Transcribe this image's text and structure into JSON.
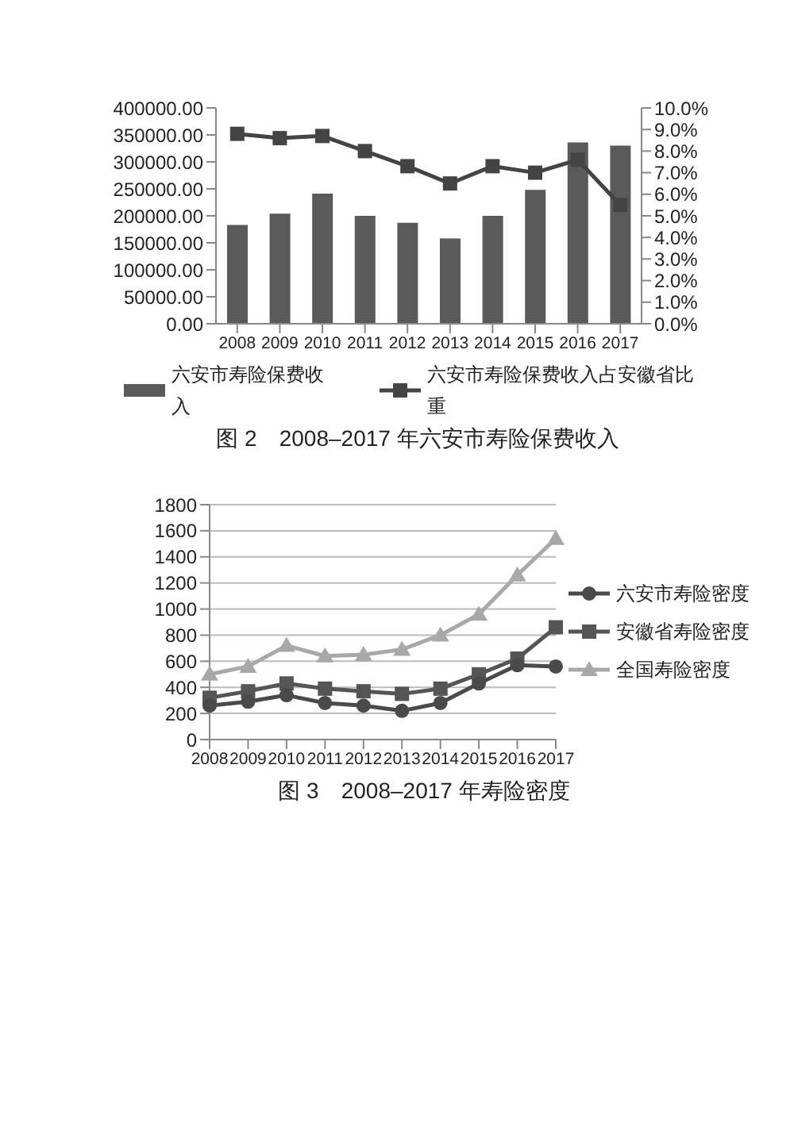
{
  "chart_data": [
    {
      "type": "bar",
      "title": "图 2　2008–2017 年六安市寿险保费收入",
      "categories": [
        "2008",
        "2009",
        "2010",
        "2011",
        "2012",
        "2013",
        "2014",
        "2015",
        "2016",
        "2017"
      ],
      "series": [
        {
          "name": "六安市寿险保费收入",
          "color": "#5a5a5a",
          "values": [
            183000,
            204000,
            241000,
            200000,
            187000,
            158000,
            200000,
            248000,
            336000,
            330000
          ]
        },
        {
          "name": "六安市寿险保费收入占安徽省比重",
          "type": "line",
          "axis": "y2",
          "marker": "square",
          "color": "#444444",
          "values": [
            8.8,
            8.6,
            8.7,
            8.0,
            7.3,
            6.5,
            7.3,
            7.0,
            7.6,
            5.5
          ]
        }
      ],
      "ylim": [
        0,
        400000
      ],
      "yticks": [
        {
          "value": 0,
          "label": "0.00"
        },
        {
          "value": 50000,
          "label": "50000.00"
        },
        {
          "value": 100000,
          "label": "100000.00"
        },
        {
          "value": 150000,
          "label": "150000.00"
        },
        {
          "value": 200000,
          "label": "200000.00"
        },
        {
          "value": 250000,
          "label": "250000.00"
        },
        {
          "value": 300000,
          "label": "300000.00"
        },
        {
          "value": 350000,
          "label": "350000.00"
        },
        {
          "value": 400000,
          "label": "400000.00"
        }
      ],
      "y2lim": [
        0,
        10
      ],
      "y2ticks": [
        {
          "value": 0,
          "label": "0.0%"
        },
        {
          "value": 1,
          "label": "1.0%"
        },
        {
          "value": 2,
          "label": "2.0%"
        },
        {
          "value": 3,
          "label": "3.0%"
        },
        {
          "value": 4,
          "label": "4.0%"
        },
        {
          "value": 5,
          "label": "5.0%"
        },
        {
          "value": 6,
          "label": "6.0%"
        },
        {
          "value": 7,
          "label": "7.0%"
        },
        {
          "value": 8,
          "label": "8.0%"
        },
        {
          "value": 9,
          "label": "9.0%"
        },
        {
          "value": 10,
          "label": "10.0%"
        }
      ],
      "grid": false,
      "legend": "bottom"
    },
    {
      "type": "line",
      "title": "图 3　2008–2017 年寿险密度",
      "categories": [
        "2008",
        "2009",
        "2010",
        "2011",
        "2012",
        "2013",
        "2014",
        "2015",
        "2016",
        "2017"
      ],
      "series": [
        {
          "name": "六安市寿险密度",
          "marker": "circle",
          "color": "#4a4a4a",
          "values": [
            260,
            290,
            340,
            280,
            260,
            220,
            280,
            430,
            570,
            560
          ]
        },
        {
          "name": "安徽省寿险密度",
          "marker": "square",
          "color": "#555555",
          "values": [
            320,
            370,
            430,
            390,
            370,
            350,
            390,
            500,
            620,
            860
          ]
        },
        {
          "name": "全国寿险密度",
          "marker": "triangle",
          "color": "#a8a8a8",
          "values": [
            500,
            560,
            720,
            640,
            650,
            690,
            800,
            960,
            1260,
            1540
          ]
        }
      ],
      "ylim": [
        0,
        1800
      ],
      "yticks": [
        0,
        200,
        400,
        600,
        800,
        1000,
        1200,
        1400,
        1600,
        1800
      ],
      "grid": "y",
      "legend": "right"
    }
  ]
}
